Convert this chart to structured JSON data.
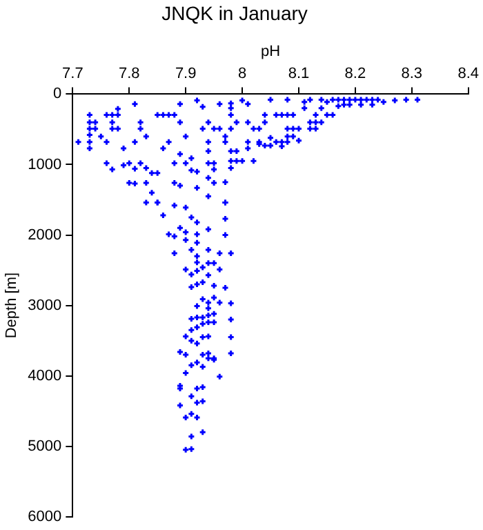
{
  "chart_data": {
    "type": "scatter",
    "title": "JNQK in January",
    "xlabel": "pH",
    "ylabel": "Depth [m]",
    "xlim": [
      7.7,
      8.4
    ],
    "xticks": [
      7.7,
      7.8,
      7.9,
      8,
      8.1,
      8.2,
      8.3,
      8.4
    ],
    "ylim": [
      6000,
      0
    ],
    "yticks": [
      0,
      1000,
      2000,
      3000,
      4000,
      5000,
      6000
    ],
    "grid": false,
    "legend": false,
    "marker": "cross",
    "series": [
      {
        "color": "#0000ff",
        "x": [
          7.71,
          7.73,
          7.73,
          7.73,
          7.73,
          7.73,
          7.73,
          7.74,
          7.74,
          7.75,
          7.76,
          7.77,
          7.77,
          7.77,
          7.78,
          7.78,
          7.76,
          7.78,
          7.79,
          7.76,
          7.77,
          7.79,
          7.8,
          7.8,
          7.81,
          7.81,
          7.81,
          7.82,
          7.82,
          7.81,
          7.83,
          7.82,
          7.83,
          7.83,
          7.84,
          7.84,
          7.85,
          7.85,
          7.85,
          7.86,
          7.87,
          7.86,
          7.87,
          7.88,
          7.89,
          7.89,
          7.88,
          7.89,
          7.88,
          7.89,
          7.9,
          7.9,
          7.91,
          7.91,
          7.92,
          7.92,
          7.92,
          7.93,
          7.93,
          7.94,
          7.94,
          7.94,
          7.94,
          7.94,
          7.94,
          7.95,
          7.95,
          7.95,
          7.95,
          7.96,
          7.96,
          7.97,
          7.97,
          7.97,
          7.97,
          7.98,
          7.98,
          7.98,
          7.98,
          7.98,
          7.98,
          7.98,
          7.99,
          7.99,
          7.99,
          8.0,
          8.0,
          8.01,
          8.01,
          8.01,
          8.01,
          8.02,
          8.02,
          8.03,
          8.03,
          8.03,
          8.04,
          8.04,
          8.04,
          8.05,
          8.05,
          8.05,
          8.06,
          8.06,
          8.07,
          8.07,
          8.07,
          8.08,
          8.08,
          8.08,
          8.08,
          8.08,
          8.09,
          8.09,
          8.09,
          8.1,
          8.1,
          8.11,
          8.11,
          8.12,
          8.12,
          8.12,
          8.13,
          8.13,
          8.13,
          8.14,
          8.14,
          8.14,
          8.15,
          8.15,
          8.16,
          8.16,
          8.17,
          8.17,
          8.18,
          8.18,
          8.19,
          8.19,
          8.2,
          8.21,
          8.21,
          8.22,
          8.23,
          8.23,
          8.24,
          8.25,
          8.27,
          8.29,
          8.31,
          7.83,
          7.85,
          7.86,
          7.88,
          7.9,
          7.91,
          7.92,
          7.87,
          7.88,
          7.89,
          7.9,
          7.9,
          7.92,
          7.92,
          7.94,
          7.97,
          7.97,
          7.97,
          7.88,
          7.91,
          7.92,
          7.92,
          7.93,
          7.94,
          7.94,
          7.95,
          7.96,
          7.98,
          7.96,
          7.9,
          7.91,
          7.92,
          7.94,
          7.91,
          7.92,
          7.93,
          7.95,
          7.97,
          7.93,
          7.95,
          7.94,
          7.96,
          7.98,
          7.92,
          7.94,
          7.91,
          7.92,
          7.93,
          7.94,
          7.95,
          7.98,
          7.91,
          7.92,
          7.93,
          7.94,
          7.95,
          7.93,
          7.9,
          7.91,
          7.92,
          7.94,
          7.98,
          7.89,
          7.9,
          7.93,
          7.94,
          7.98,
          7.95,
          7.94,
          7.95,
          7.92,
          7.91,
          7.93,
          7.9,
          7.96,
          7.89,
          7.89,
          7.92,
          7.93,
          7.91,
          7.92,
          7.93,
          7.89,
          7.9,
          7.91,
          7.92,
          7.93,
          7.91,
          7.9,
          7.91
        ],
        "values": [
          680,
          295,
          400,
          490,
          580,
          680,
          770,
          400,
          490,
          600,
          295,
          295,
          400,
          490,
          295,
          490,
          680,
          210,
          770,
          980,
          1070,
          1010,
          980,
          1260,
          140,
          1060,
          1270,
          400,
          490,
          680,
          600,
          980,
          1050,
          1260,
          1120,
          1400,
          295,
          1120,
          1540,
          295,
          680,
          770,
          295,
          295,
          140,
          400,
          980,
          850,
          1260,
          1300,
          600,
          980,
          910,
          1080,
          90,
          1100,
          1330,
          180,
          490,
          400,
          680,
          810,
          980,
          1190,
          1450,
          490,
          980,
          1070,
          1260,
          140,
          490,
          600,
          680,
          1250,
          1540,
          130,
          200,
          295,
          490,
          810,
          950,
          1050,
          400,
          810,
          950,
          90,
          950,
          140,
          400,
          680,
          770,
          490,
          950,
          490,
          680,
          710,
          295,
          400,
          730,
          80,
          620,
          730,
          295,
          680,
          295,
          680,
          740,
          80,
          295,
          490,
          600,
          680,
          295,
          490,
          600,
          490,
          660,
          110,
          200,
          80,
          400,
          490,
          295,
          400,
          490,
          80,
          200,
          400,
          110,
          295,
          80,
          295,
          80,
          170,
          80,
          150,
          80,
          150,
          80,
          80,
          150,
          80,
          80,
          150,
          80,
          110,
          90,
          80,
          80,
          1540,
          1540,
          1720,
          1580,
          1610,
          1750,
          1820,
          1990,
          2020,
          1900,
          1960,
          2070,
          1990,
          2110,
          1920,
          1540,
          1770,
          2000,
          2260,
          2210,
          2300,
          2390,
          2460,
          2210,
          2400,
          2400,
          2260,
          2260,
          2490,
          2490,
          2560,
          2510,
          2570,
          2740,
          2700,
          2670,
          2720,
          2750,
          2910,
          2890,
          2960,
          2960,
          2970,
          3010,
          3040,
          3190,
          3170,
          3170,
          3140,
          3120,
          3200,
          3350,
          3310,
          3260,
          3240,
          3240,
          3450,
          3440,
          3500,
          3540,
          3440,
          3450,
          3660,
          3700,
          3700,
          3680,
          3680,
          3750,
          3750,
          3770,
          3810,
          3850,
          3870,
          3960,
          4010,
          4140,
          4180,
          4180,
          4160,
          4290,
          4380,
          4360,
          4420,
          4590,
          4540,
          4590,
          4800,
          4860,
          5050,
          5040
        ]
      }
    ]
  }
}
